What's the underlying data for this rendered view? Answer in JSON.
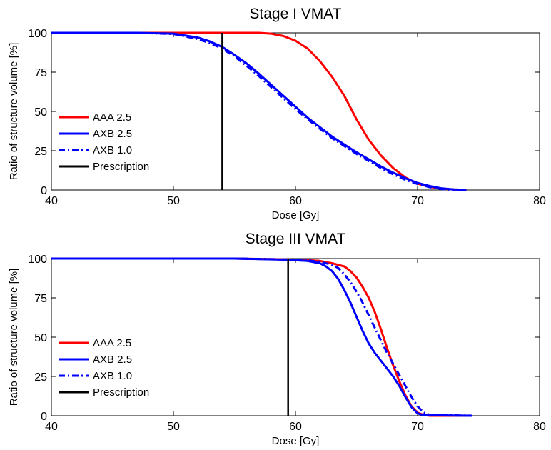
{
  "chart_data": [
    {
      "type": "line",
      "title": "Stage I VMAT",
      "xlabel": "Dose [Gy]",
      "ylabel": "Ratio of structure volume [%]",
      "xlim": [
        40,
        80
      ],
      "ylim": [
        0,
        100
      ],
      "xticks": [
        "40",
        "50",
        "60",
        "70",
        "80"
      ],
      "yticks": [
        "0",
        "25",
        "50",
        "75",
        "100"
      ],
      "grid": false,
      "legend_position": "left",
      "series": [
        {
          "name": "AAA 2.5",
          "color": "#ff0000",
          "style": "solid",
          "x": [
            40,
            47,
            52,
            54,
            56,
            57,
            58,
            59,
            60,
            61,
            62,
            63,
            64,
            65,
            66,
            67,
            68,
            69,
            70,
            71,
            72,
            73,
            74
          ],
          "y": [
            100,
            100,
            100,
            100,
            100,
            100,
            99.5,
            98,
            95,
            90,
            82,
            72,
            60,
            45,
            32,
            22,
            14,
            8,
            4,
            2,
            0.8,
            0.3,
            0
          ]
        },
        {
          "name": "AXB 2.5",
          "color": "#0000ff",
          "style": "solid",
          "x": [
            40,
            47,
            50,
            52,
            53,
            54,
            55,
            56,
            57,
            58,
            59,
            60,
            61,
            62,
            63,
            64,
            65,
            66,
            67,
            68,
            69,
            70,
            71,
            72,
            73,
            74
          ],
          "y": [
            100,
            100,
            99.5,
            97,
            94.5,
            91,
            86,
            80.5,
            74,
            67,
            60,
            53,
            46,
            40,
            34,
            29,
            24,
            19.5,
            15,
            11,
            7.5,
            4.5,
            2.5,
            1,
            0.3,
            0
          ]
        },
        {
          "name": "AXB 1.0",
          "color": "#0000ff",
          "style": "dashdot",
          "x": [
            40,
            47,
            50,
            52,
            53,
            54,
            55,
            56,
            57,
            58,
            59,
            60,
            61,
            62,
            63,
            64,
            65,
            66,
            67,
            68,
            69,
            70,
            71,
            72,
            73
          ],
          "y": [
            100,
            100,
            99.3,
            96,
            93.5,
            90,
            85,
            79,
            72.5,
            65.5,
            58.5,
            51.5,
            45,
            39,
            33,
            28,
            23,
            18.5,
            14,
            10,
            6.5,
            3.8,
            1.8,
            0.6,
            0
          ]
        },
        {
          "name": "Prescription",
          "color": "#000000",
          "style": "solid",
          "x": [
            54,
            54
          ],
          "y": [
            0,
            100
          ]
        }
      ]
    },
    {
      "type": "line",
      "title": "Stage III VMAT",
      "xlabel": "Dose [Gy]",
      "ylabel": "Ratio of structure volume [%]",
      "xlim": [
        40,
        80
      ],
      "ylim": [
        0,
        100
      ],
      "xticks": [
        "40",
        "50",
        "60",
        "70",
        "80"
      ],
      "yticks": [
        "0",
        "25",
        "50",
        "75",
        "100"
      ],
      "grid": false,
      "legend_position": "left",
      "series": [
        {
          "name": "AAA 2.5",
          "color": "#ff0000",
          "style": "solid",
          "x": [
            40,
            55,
            59,
            61,
            62,
            63,
            64,
            64.5,
            65,
            65.5,
            66,
            66.5,
            67,
            67.5,
            68,
            68.5,
            69,
            69.5,
            70,
            70.5,
            71,
            74.5
          ],
          "y": [
            100,
            100,
            99.5,
            99,
            98.5,
            97,
            95,
            92,
            88,
            82,
            75,
            66,
            55,
            43,
            32,
            22,
            13,
            6,
            2,
            0.5,
            0,
            0
          ]
        },
        {
          "name": "AXB 2.5",
          "color": "#0000ff",
          "style": "solid",
          "x": [
            40,
            55,
            59,
            61,
            62,
            62.5,
            63,
            63.5,
            64,
            64.5,
            65,
            65.5,
            66,
            66.5,
            67,
            67.5,
            68,
            68.5,
            69,
            69.5,
            70,
            70.5,
            74.5
          ],
          "y": [
            100,
            100,
            99.3,
            98.5,
            97,
            95,
            92,
            87,
            80,
            72,
            63,
            54,
            46,
            40,
            35,
            30,
            25,
            19,
            12,
            5.5,
            1.5,
            0.3,
            0
          ]
        },
        {
          "name": "AXB 1.0",
          "color": "#0000ff",
          "style": "dashdot",
          "x": [
            40,
            55,
            59,
            61,
            62,
            63,
            63.5,
            64,
            64.5,
            65,
            65.5,
            66,
            66.5,
            67,
            67.5,
            68,
            68.5,
            69,
            69.5,
            70,
            70.5,
            71,
            74.5
          ],
          "y": [
            100,
            100,
            99.5,
            98.8,
            98,
            96,
            94,
            90,
            85,
            79,
            72,
            64,
            56,
            48,
            40,
            33,
            26,
            19,
            12,
            6,
            2,
            0.5,
            0
          ]
        },
        {
          "name": "Prescription",
          "color": "#000000",
          "style": "solid",
          "x": [
            59.4,
            59.4
          ],
          "y": [
            0,
            100
          ]
        }
      ]
    }
  ]
}
